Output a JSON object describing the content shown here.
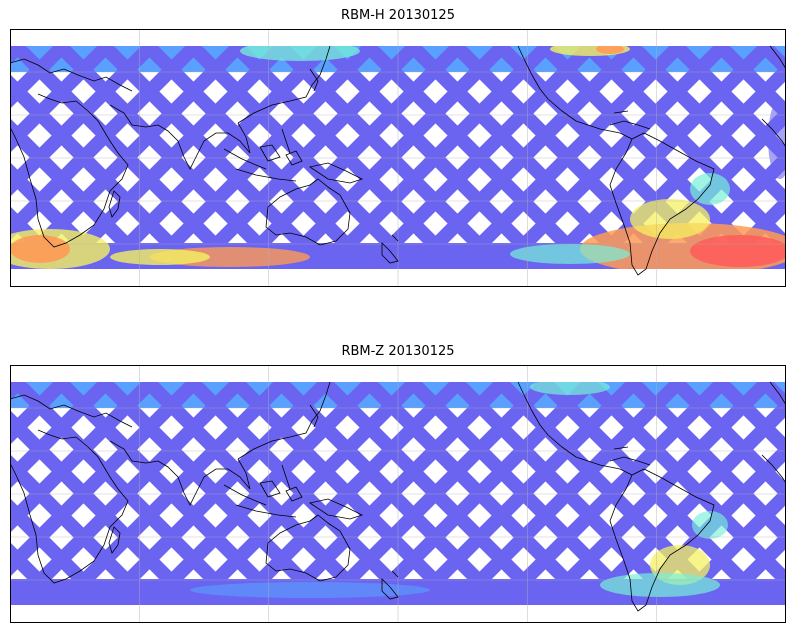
{
  "panels": [
    {
      "title": "RBM-H 20130125",
      "hot": "south"
    },
    {
      "title": "RBM-Z 20130125",
      "hot": "mild"
    }
  ],
  "colors": {
    "track": "#6a64f0",
    "track_light": "#5aa0ff",
    "cyan": "#77f0d8",
    "yellow": "#f4f062",
    "orange": "#ff9a55",
    "red": "#ff5a5a",
    "coast": "#000000"
  },
  "grid": {
    "lon_lines": 5,
    "lat_lines": 5
  }
}
